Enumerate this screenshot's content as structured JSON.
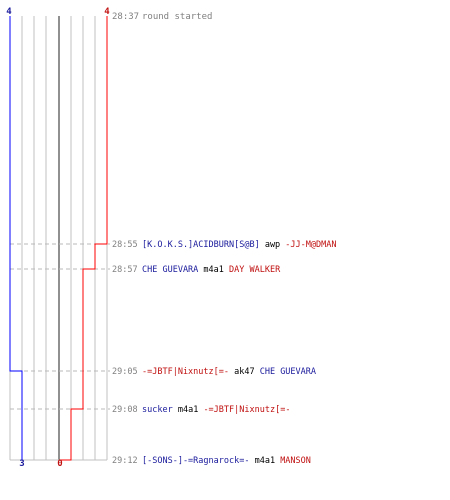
{
  "header": {
    "time": "28:37",
    "text": "round started"
  },
  "scores": {
    "blue_start": "4",
    "red_start": "4",
    "blue_end": "3",
    "red_end": "0"
  },
  "colors": {
    "blue": "#1a1a9c",
    "red": "#c01010",
    "time": "#808080",
    "grid": "#c0c0c0",
    "center": "#606060",
    "dash": "#b8b8b8",
    "blue_line": "#0000ff",
    "red_line": "#ff0000"
  },
  "events": [
    {
      "time": "28:55",
      "killer": "[K.O.K.S.]ACIDBURN[S@B]",
      "killer_team": "blue",
      "weapon": "awp",
      "victim": "-JJ-M@DMAN",
      "victim_team": "red"
    },
    {
      "time": "28:57",
      "killer": "CHE GUEVARA",
      "killer_team": "blue",
      "weapon": "m4a1",
      "victim": "DAY WALKER",
      "victim_team": "red"
    },
    {
      "time": "29:05",
      "killer": "-=JBTF|Nixnutz[=-",
      "killer_team": "red",
      "weapon": "ak47",
      "victim": "CHE GUEVARA",
      "victim_team": "blue"
    },
    {
      "time": "29:08",
      "killer": "sucker",
      "killer_team": "blue",
      "weapon": "m4a1",
      "victim": "-=JBTF|Nixnutz[=-",
      "victim_team": "red"
    },
    {
      "time": "29:12",
      "killer": "[-SONS-]-=Ragnarock=-",
      "killer_team": "blue",
      "weapon": "m4a1",
      "victim": "MANSON",
      "victim_team": "red"
    }
  ],
  "blue_alive_steps": [
    4,
    4,
    4,
    3,
    3,
    3
  ],
  "red_alive_steps": [
    4,
    3,
    2,
    2,
    1,
    0
  ]
}
